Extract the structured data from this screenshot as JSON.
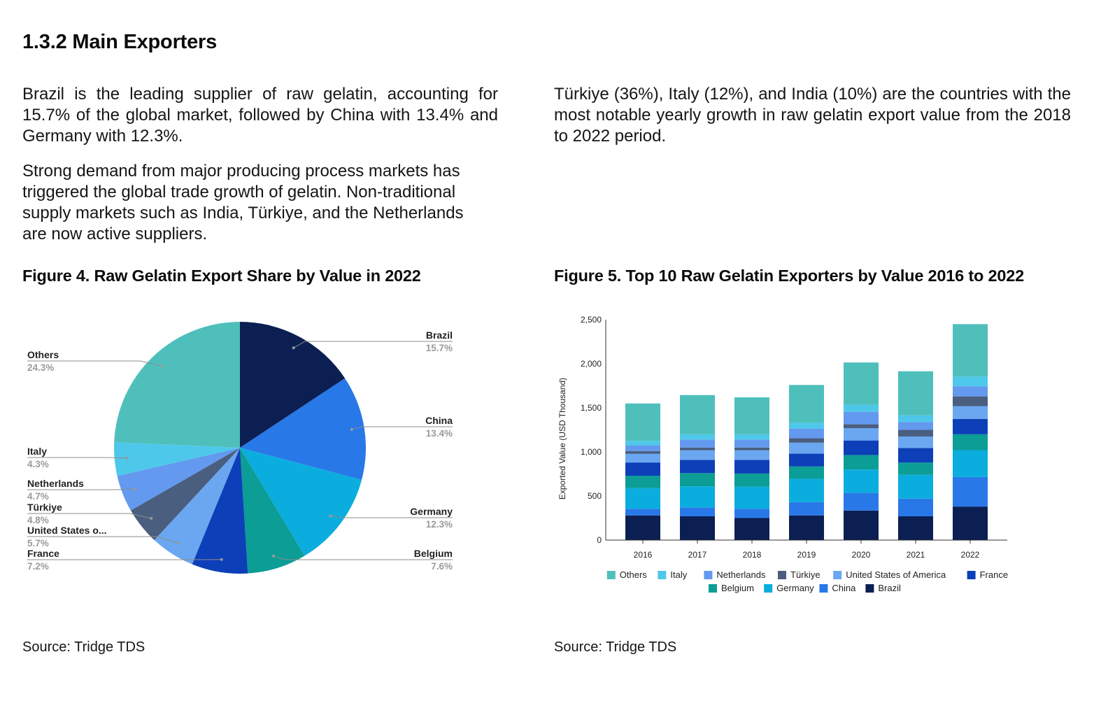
{
  "section": {
    "title": "1.3.2 Main Exporters"
  },
  "text": {
    "para1": "Brazil is the leading supplier of raw gelatin, accounting for 15.7% of the global market, followed by China with 13.4% and Germany with 12.3%.",
    "para2": "Strong demand from major producing process markets has triggered the global trade growth of gelatin. Non-traditional supply markets such as India, Türkiye, and the Netherlands are now active suppliers.",
    "para3": "Türkiye (36%), Italy (12%), and India (10%) are the countries with the most notable yearly growth in raw gelatin export value from the 2018 to 2022 period."
  },
  "figure4": {
    "title": "Figure 4. Raw Gelatin Export Share by Value in 2022",
    "source": "Source: Tridge TDS"
  },
  "figure5": {
    "title": "Figure 5. Top 10 Raw Gelatin Exporters by Value 2016 to 2022",
    "source": "Source: Tridge TDS"
  },
  "colors": {
    "Brazil": "#0b1f52",
    "China": "#2878e8",
    "Germany": "#0badde",
    "Belgium": "#0b9d96",
    "France": "#0d3fb8",
    "United States of America": "#6aa7f0",
    "Türkiye": "#4a5e80",
    "Netherlands": "#6399ef",
    "Italy": "#4ec8ea",
    "Others": "#4fbfbc"
  },
  "chart_data": [
    {
      "type": "pie",
      "title": "Figure 4. Raw Gelatin Export Share by Value in 2022",
      "slices": [
        {
          "label": "Brazil",
          "display": "Brazil",
          "value": 15.7,
          "pct": "15.7%",
          "side": "right"
        },
        {
          "label": "China",
          "display": "China",
          "value": 13.4,
          "pct": "13.4%",
          "side": "right"
        },
        {
          "label": "Germany",
          "display": "Germany",
          "value": 12.3,
          "pct": "12.3%",
          "side": "right"
        },
        {
          "label": "Belgium",
          "display": "Belgium",
          "value": 7.6,
          "pct": "7.6%",
          "side": "right"
        },
        {
          "label": "France",
          "display": "France",
          "value": 7.2,
          "pct": "7.2%",
          "side": "left"
        },
        {
          "label": "United States of America",
          "display": "United States o...",
          "value": 5.7,
          "pct": "5.7%",
          "side": "left"
        },
        {
          "label": "Türkiye",
          "display": "Türkiye",
          "value": 4.8,
          "pct": "4.8%",
          "side": "left"
        },
        {
          "label": "Netherlands",
          "display": "Netherlands",
          "value": 4.7,
          "pct": "4.7%",
          "side": "left"
        },
        {
          "label": "Italy",
          "display": "Italy",
          "value": 4.3,
          "pct": "4.3%",
          "side": "left"
        },
        {
          "label": "Others",
          "display": "Others",
          "value": 24.3,
          "pct": "24.3%",
          "side": "left"
        }
      ]
    },
    {
      "type": "bar",
      "stacked": true,
      "title": "Figure 5. Top 10 Raw Gelatin Exporters by Value 2016 to 2022",
      "ylabel": "Exported Value (USD Thousand)",
      "xlabel": "",
      "ylim": [
        0,
        2500
      ],
      "yticks": [
        0,
        500,
        1000,
        1500,
        2000,
        2500
      ],
      "ytick_labels": [
        "0",
        "500",
        "1,000",
        "1,500",
        "2,000",
        "2,500"
      ],
      "categories": [
        "2016",
        "2017",
        "2018",
        "2019",
        "2020",
        "2021",
        "2022"
      ],
      "series": [
        {
          "name": "Brazil",
          "values": [
            280,
            270,
            250,
            280,
            335,
            270,
            380
          ]
        },
        {
          "name": "China",
          "values": [
            75,
            100,
            105,
            150,
            200,
            200,
            335
          ]
        },
        {
          "name": "Germany",
          "values": [
            235,
            240,
            250,
            265,
            265,
            270,
            305
          ]
        },
        {
          "name": "Belgium",
          "values": [
            140,
            150,
            150,
            140,
            165,
            140,
            180
          ]
        },
        {
          "name": "France",
          "values": [
            150,
            150,
            155,
            145,
            165,
            165,
            175
          ]
        },
        {
          "name": "United States of America",
          "values": [
            100,
            110,
            110,
            125,
            140,
            130,
            145
          ]
        },
        {
          "name": "Türkiye",
          "values": [
            30,
            30,
            30,
            50,
            45,
            75,
            110
          ]
        },
        {
          "name": "Netherlands",
          "values": [
            65,
            90,
            90,
            110,
            140,
            90,
            115
          ]
        },
        {
          "name": "Italy",
          "values": [
            50,
            60,
            60,
            65,
            80,
            75,
            110
          ]
        },
        {
          "name": "Others",
          "values": [
            425,
            445,
            420,
            430,
            480,
            500,
            595
          ]
        }
      ],
      "legend": {
        "placement": "bottom",
        "row1": [
          "Others",
          "Italy",
          "Netherlands",
          "Türkiye",
          "United States of America",
          "France"
        ],
        "row2": [
          "Belgium",
          "Germany",
          "China",
          "Brazil"
        ]
      }
    }
  ]
}
